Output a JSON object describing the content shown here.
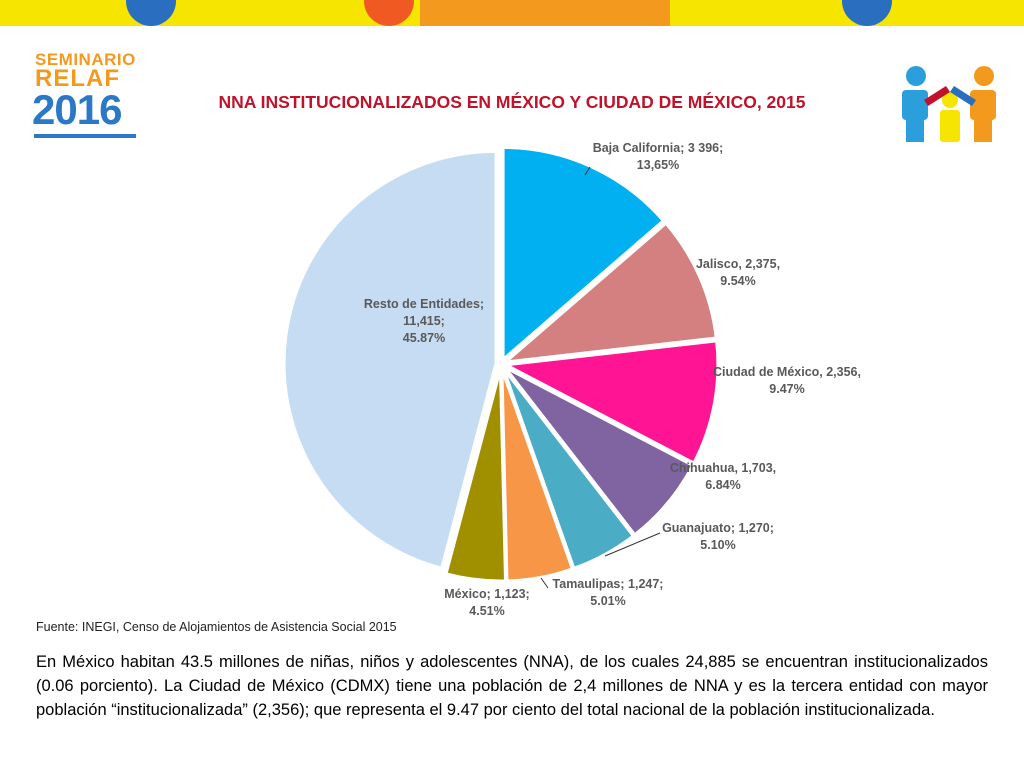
{
  "logo": {
    "line1": "SEMINARIO",
    "line2": "RELAF",
    "line3": "2016"
  },
  "title": "NNA INSTITUCIONALIZADOS EN MÉXICO Y CIUDAD DE MÉXICO, 2015",
  "colors": {
    "title": "#c0122a",
    "topbar": "#f5e500",
    "logo_orange": "#f39a1e",
    "logo_blue": "#2a78c6"
  },
  "chart_data": {
    "type": "pie",
    "title": "NNA INSTITUCIONALIZADOS EN MÉXICO Y CIUDAD DE MÉXICO, 2015",
    "slices": [
      {
        "name": "Baja California",
        "value": 3396,
        "percent": 13.65,
        "color": "#00b0f0",
        "label_lines": [
          "Baja California; 3 396;",
          "13,65%"
        ]
      },
      {
        "name": "Jalisco",
        "value": 2375,
        "percent": 9.54,
        "color": "#d47f80",
        "label_lines": [
          "Jalisco, 2,375,",
          "9.54%"
        ]
      },
      {
        "name": "Ciudad de México",
        "value": 2356,
        "percent": 9.47,
        "color": "#ff1493",
        "label_lines": [
          "Ciudad de México, 2,356,",
          "9.47%"
        ]
      },
      {
        "name": "Chihuahua",
        "value": 1703,
        "percent": 6.84,
        "color": "#8064a2",
        "label_lines": [
          "Chihuahua, 1,703,",
          "6.84%"
        ]
      },
      {
        "name": "Guanajuato",
        "value": 1270,
        "percent": 5.1,
        "color": "#4bacc6",
        "label_lines": [
          "Guanajuato; 1,270;",
          "5.10%"
        ]
      },
      {
        "name": "Tamaulipas",
        "value": 1247,
        "percent": 5.01,
        "color": "#f79646",
        "label_lines": [
          "Tamaulipas; 1,247;",
          "5.01%"
        ]
      },
      {
        "name": "México",
        "value": 1123,
        "percent": 4.51,
        "color": "#a09000",
        "label_lines": [
          "México; 1,123;",
          "4.51%"
        ]
      },
      {
        "name": "Resto de Entidades",
        "value": 11415,
        "percent": 45.87,
        "color": "#c6dcf2",
        "label_lines": [
          "Resto de Entidades;",
          "11,415;",
          "45.87%"
        ]
      }
    ]
  },
  "source": "Fuente: INEGI, Censo de Alojamientos de Asistencia Social 2015",
  "paragraph": "En México habitan 43.5 millones de niñas, niños y adolescentes (NNA), de los cuales 24,885 se encuentran institucionalizados (0.06 porciento). La Ciudad de México (CDMX) tiene una población de 2,4 millones de NNA y es la tercera entidad con mayor población “institucionalizada” (2,356); que representa el 9.47 por ciento del total nacional de la población institucionalizada."
}
